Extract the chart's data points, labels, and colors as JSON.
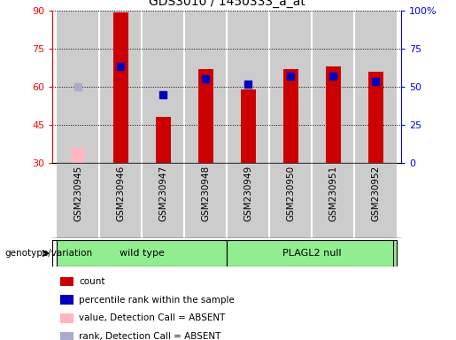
{
  "title": "GDS3010 / 1450333_a_at",
  "samples": [
    "GSM230945",
    "GSM230946",
    "GSM230947",
    "GSM230948",
    "GSM230949",
    "GSM230950",
    "GSM230951",
    "GSM230952"
  ],
  "count_values": [
    null,
    89,
    48,
    67,
    59,
    67,
    68,
    66
  ],
  "count_absent": [
    36,
    null,
    null,
    null,
    null,
    null,
    null,
    null
  ],
  "percentile_values": [
    null,
    68,
    57,
    63,
    61,
    64,
    64,
    62
  ],
  "percentile_absent": [
    60,
    null,
    null,
    null,
    null,
    null,
    null,
    null
  ],
  "ylim_left": [
    30,
    90
  ],
  "ylim_right": [
    0,
    100
  ],
  "yticks_left": [
    30,
    45,
    60,
    75,
    90
  ],
  "yticks_right": [
    0,
    25,
    50,
    75,
    100
  ],
  "ytick_right_labels": [
    "0",
    "25",
    "50",
    "75",
    "100%"
  ],
  "bar_color": "#cc0000",
  "bar_absent_color": "#ffb6c1",
  "dot_color": "#0000bb",
  "dot_absent_color": "#aaaacc",
  "bg_color": "#cccccc",
  "plot_bg": "#ffffff",
  "group_color": "#90ee90",
  "genotype_label": "genotype/variation",
  "legend_items": [
    {
      "color": "#cc0000",
      "label": "count"
    },
    {
      "color": "#0000bb",
      "label": "percentile rank within the sample"
    },
    {
      "color": "#ffb6c1",
      "label": "value, Detection Call = ABSENT"
    },
    {
      "color": "#aaaacc",
      "label": "rank, Detection Call = ABSENT"
    }
  ]
}
